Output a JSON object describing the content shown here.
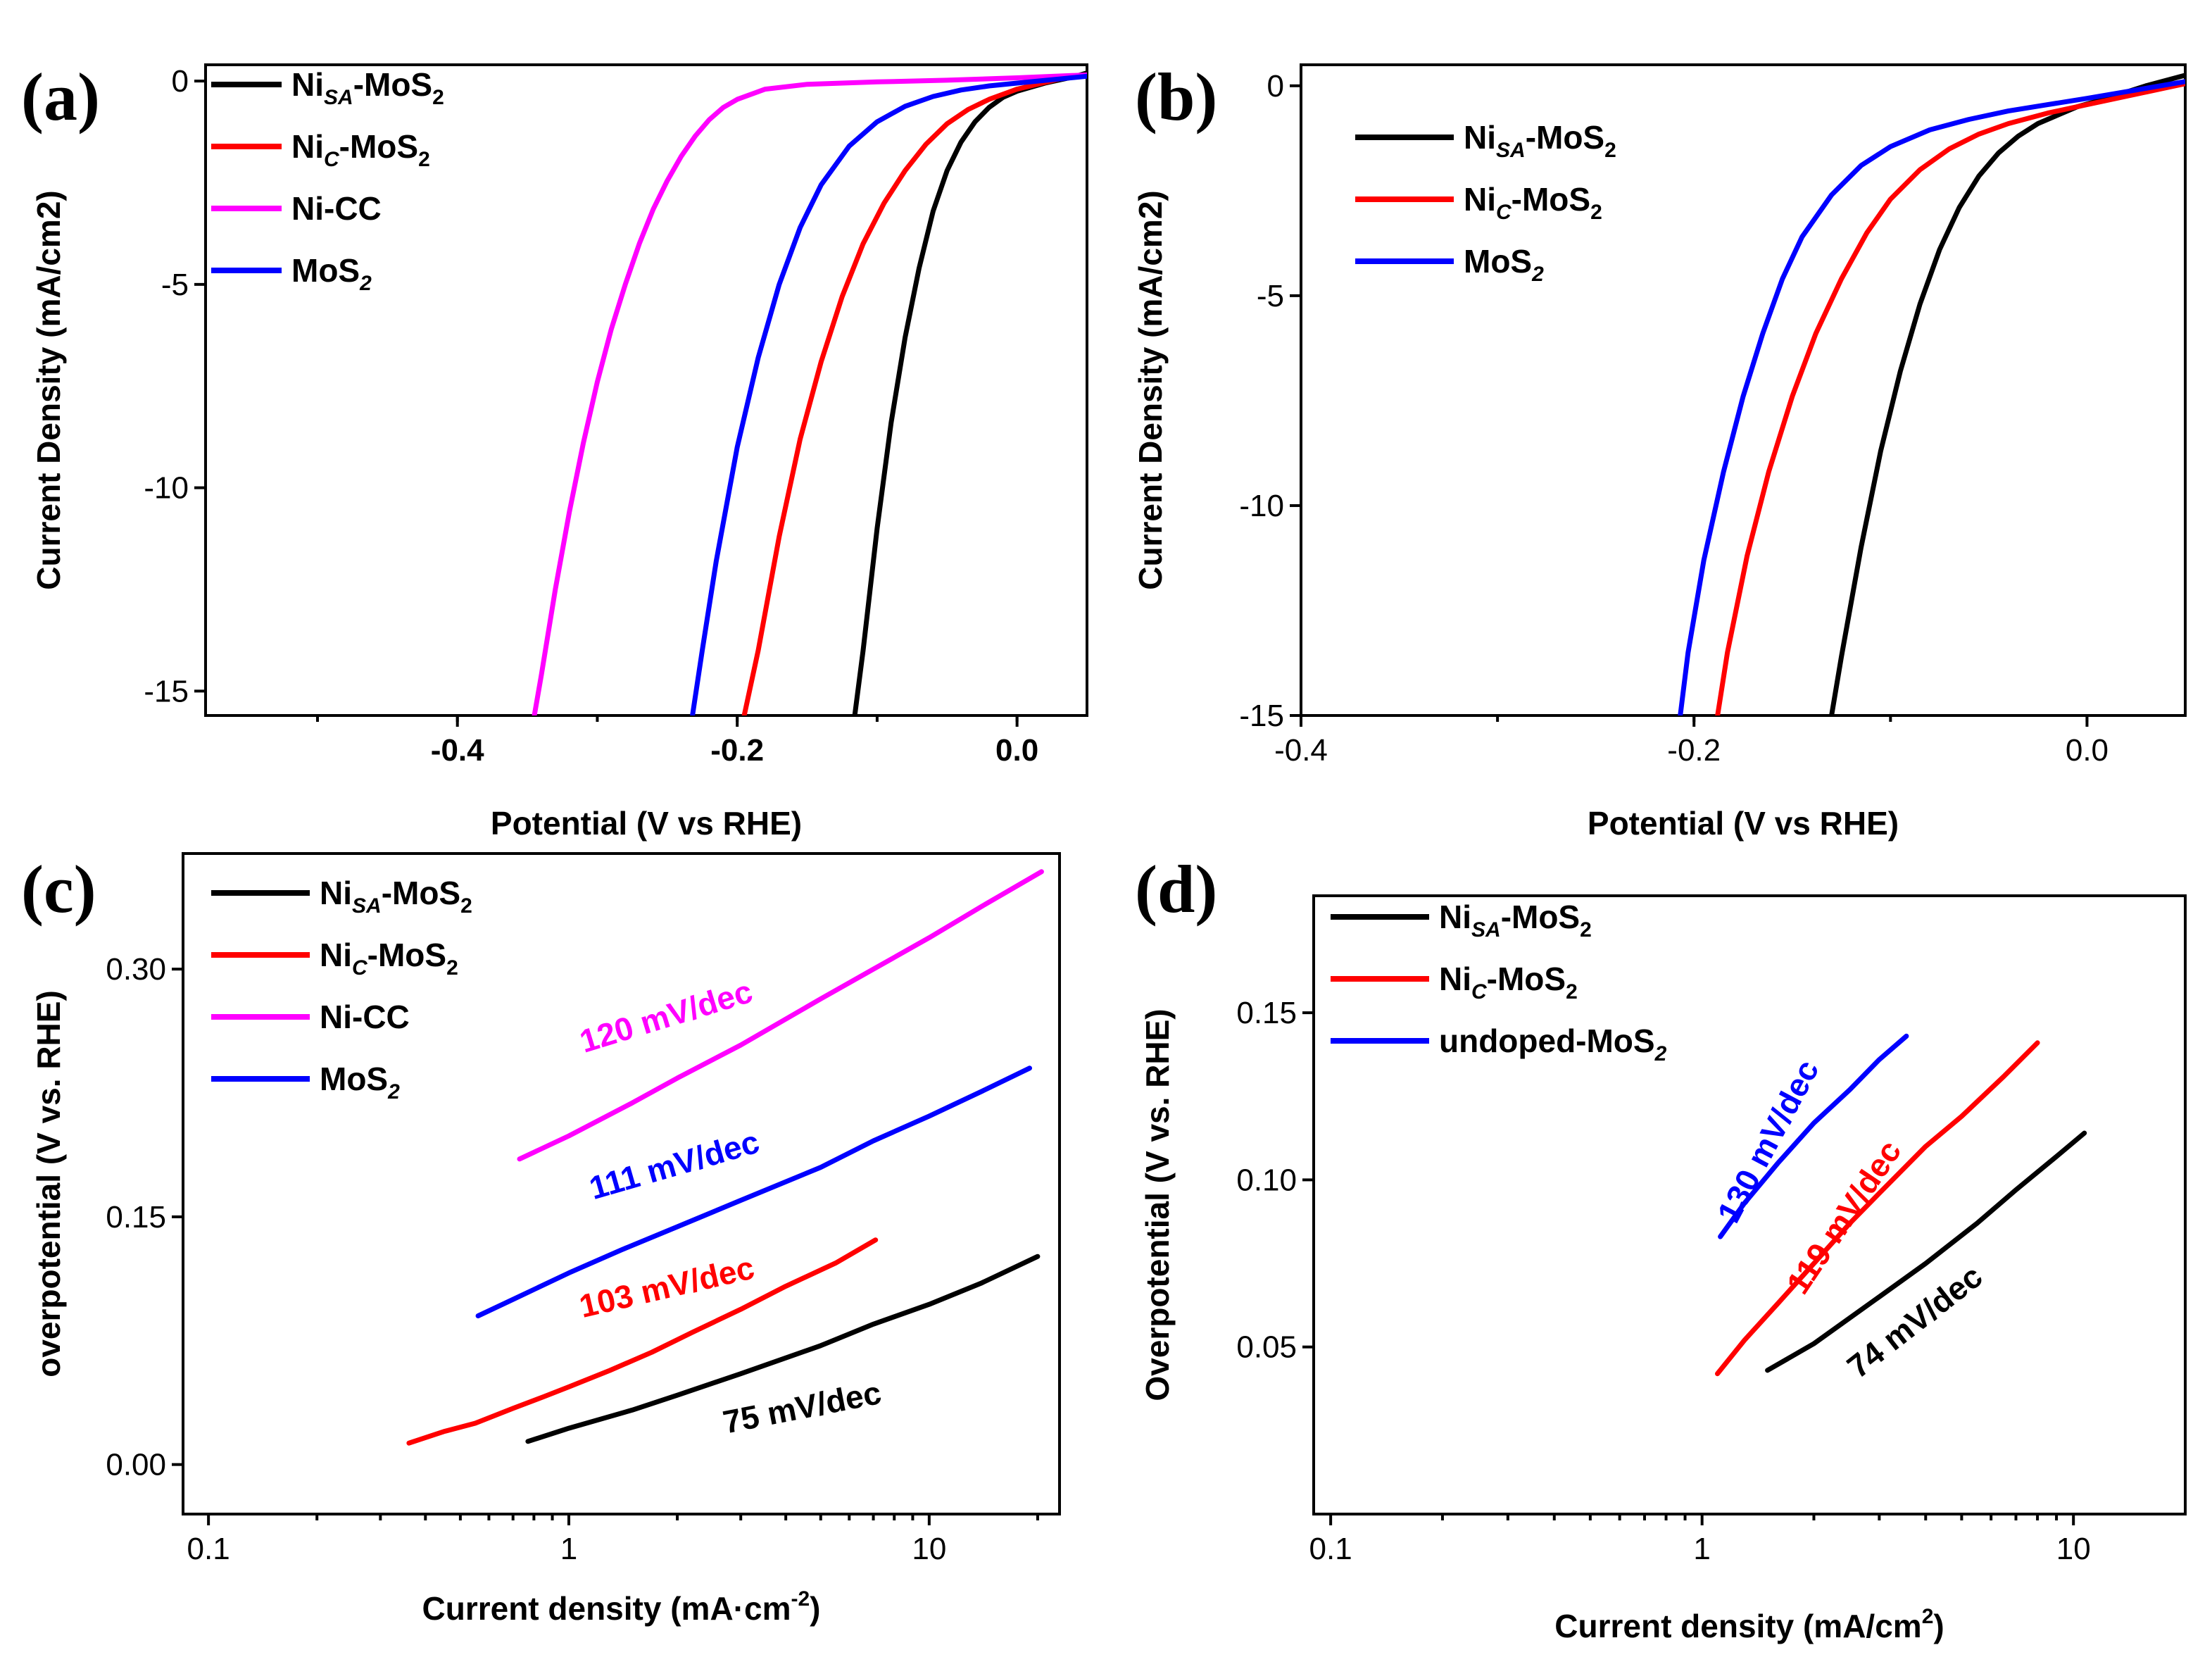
{
  "colors": {
    "black": "#000000",
    "red": "#ff0000",
    "magenta": "#ff00ff",
    "blue": "#0000ff"
  },
  "chart_data": [
    {
      "id": "a",
      "panel_label": "(a)",
      "type": "line",
      "xlabel": "Potential (V vs RHE)",
      "ylabel": "Current Density (mA/cm2)",
      "xlim": [
        -0.58,
        0.05
      ],
      "ylim": [
        -15.6,
        0.4
      ],
      "xticks": [
        -0.4,
        -0.2,
        0.0
      ],
      "xtick_labels": [
        "-0.4",
        "-0.2",
        "0.0"
      ],
      "yticks": [
        0,
        -5,
        -10,
        -15
      ],
      "ytick_labels": [
        "0",
        "-5",
        "-10",
        "-15"
      ],
      "legend_position": "top-left",
      "series": [
        {
          "name": "NiSA-MoS2",
          "legend": [
            "Ni",
            "SA",
            "-MoS",
            "2"
          ],
          "color": "#000000",
          "x": [
            -0.116,
            -0.11,
            -0.1,
            -0.09,
            -0.08,
            -0.07,
            -0.06,
            -0.05,
            -0.04,
            -0.03,
            -0.02,
            -0.01,
            0.0,
            0.02,
            0.04,
            0.05
          ],
          "y": [
            -15.6,
            -14.0,
            -11.0,
            -8.4,
            -6.3,
            -4.6,
            -3.2,
            -2.2,
            -1.5,
            -1.0,
            -0.65,
            -0.4,
            -0.25,
            -0.05,
            0.1,
            0.2
          ]
        },
        {
          "name": "NiC-MoS2",
          "legend": [
            "Ni",
            "C",
            "-MoS",
            "2"
          ],
          "color": "#ff0000",
          "x": [
            -0.195,
            -0.185,
            -0.17,
            -0.155,
            -0.14,
            -0.125,
            -0.11,
            -0.095,
            -0.08,
            -0.065,
            -0.05,
            -0.035,
            -0.02,
            0.0,
            0.03,
            0.05
          ],
          "y": [
            -15.6,
            -14.0,
            -11.2,
            -8.8,
            -6.9,
            -5.3,
            -4.0,
            -3.0,
            -2.2,
            -1.55,
            -1.05,
            -0.7,
            -0.45,
            -0.2,
            0.05,
            0.15
          ]
        },
        {
          "name": "Ni-CC",
          "legend": [
            "Ni-CC",
            "",
            "",
            ""
          ],
          "color": "#ff00ff",
          "x": [
            -0.345,
            -0.34,
            -0.33,
            -0.32,
            -0.31,
            -0.3,
            -0.29,
            -0.28,
            -0.27,
            -0.26,
            -0.25,
            -0.24,
            -0.23,
            -0.22,
            -0.21,
            -0.2,
            -0.18,
            -0.15,
            -0.1,
            -0.05,
            0.0,
            0.05
          ],
          "y": [
            -15.6,
            -14.6,
            -12.5,
            -10.6,
            -8.9,
            -7.4,
            -6.1,
            -5.0,
            -4.0,
            -3.15,
            -2.45,
            -1.85,
            -1.35,
            -0.95,
            -0.65,
            -0.45,
            -0.2,
            -0.08,
            -0.02,
            0.02,
            0.08,
            0.15
          ]
        },
        {
          "name": "MoS2",
          "legend": [
            "MoS",
            "2",
            "",
            ""
          ],
          "color": "#0000ff",
          "x": [
            -0.232,
            -0.225,
            -0.215,
            -0.2,
            -0.185,
            -0.17,
            -0.155,
            -0.14,
            -0.12,
            -0.1,
            -0.08,
            -0.06,
            -0.04,
            -0.02,
            0.0,
            0.03,
            0.05
          ],
          "y": [
            -15.6,
            -14.0,
            -11.8,
            -9.0,
            -6.8,
            -5.0,
            -3.6,
            -2.55,
            -1.6,
            -1.0,
            -0.62,
            -0.38,
            -0.22,
            -0.12,
            -0.05,
            0.05,
            0.12
          ]
        }
      ]
    },
    {
      "id": "b",
      "panel_label": "(b)",
      "type": "line",
      "xlabel": "Potential (V vs RHE)",
      "ylabel": "Current Density (mA/cm2)",
      "xlim": [
        -0.4,
        0.05
      ],
      "ylim": [
        -15.0,
        0.5
      ],
      "xticks": [
        -0.4,
        -0.2,
        0.0
      ],
      "xtick_labels": [
        "-0.4",
        "-0.2",
        "0.0"
      ],
      "yticks": [
        0,
        -5,
        -10,
        -15
      ],
      "ytick_labels": [
        "0",
        "-5",
        "-10",
        "-15"
      ],
      "legend_position": "top-left",
      "series": [
        {
          "name": "NiSA-MoS2",
          "legend": [
            "Ni",
            "SA",
            "-MoS",
            "2"
          ],
          "color": "#000000",
          "x": [
            -0.13,
            -0.125,
            -0.115,
            -0.105,
            -0.095,
            -0.085,
            -0.075,
            -0.065,
            -0.055,
            -0.045,
            -0.035,
            -0.025,
            -0.015,
            -0.005,
            0.01,
            0.03,
            0.05
          ],
          "y": [
            -15.0,
            -13.6,
            -11.0,
            -8.7,
            -6.8,
            -5.2,
            -3.9,
            -2.9,
            -2.15,
            -1.6,
            -1.2,
            -0.9,
            -0.7,
            -0.5,
            -0.3,
            0.0,
            0.25
          ]
        },
        {
          "name": "NiC-MoS2",
          "legend": [
            "Ni",
            "C",
            "-MoS",
            "2"
          ],
          "color": "#ff0000",
          "x": [
            -0.188,
            -0.183,
            -0.173,
            -0.162,
            -0.15,
            -0.138,
            -0.125,
            -0.112,
            -0.1,
            -0.085,
            -0.07,
            -0.055,
            -0.04,
            -0.02,
            0.0,
            0.025,
            0.05
          ],
          "y": [
            -15.0,
            -13.5,
            -11.2,
            -9.2,
            -7.4,
            -5.9,
            -4.6,
            -3.5,
            -2.7,
            -2.0,
            -1.5,
            -1.15,
            -0.9,
            -0.65,
            -0.45,
            -0.2,
            0.05
          ]
        },
        {
          "name": "MoS2",
          "legend": [
            "MoS",
            "2",
            "",
            ""
          ],
          "color": "#0000ff",
          "x": [
            -0.207,
            -0.203,
            -0.195,
            -0.185,
            -0.175,
            -0.165,
            -0.155,
            -0.145,
            -0.13,
            -0.115,
            -0.1,
            -0.08,
            -0.06,
            -0.04,
            -0.02,
            0.0,
            0.025,
            0.05
          ],
          "y": [
            -15.0,
            -13.5,
            -11.3,
            -9.2,
            -7.4,
            -5.9,
            -4.6,
            -3.6,
            -2.6,
            -1.9,
            -1.45,
            -1.05,
            -0.8,
            -0.6,
            -0.45,
            -0.3,
            -0.1,
            0.1
          ]
        }
      ]
    },
    {
      "id": "c",
      "panel_label": "(c)",
      "type": "line",
      "xscale": "log",
      "xlabel": "Current density (mA·cm",
      "xlabel_sup": "-2",
      "xlabel_end": ")",
      "ylabel": "overpotential (V vs. RHE)",
      "xlim": [
        0.085,
        23
      ],
      "ylim": [
        -0.03,
        0.37
      ],
      "xticks": [
        0.1,
        1,
        10
      ],
      "xtick_labels": [
        "0.1",
        "1",
        "10"
      ],
      "yticks": [
        0.0,
        0.15,
        0.3
      ],
      "ytick_labels": [
        "0.00",
        "0.15",
        "0.30"
      ],
      "legend_position": "top-left",
      "series": [
        {
          "name": "NiSA-MoS2",
          "legend": [
            "Ni",
            "SA",
            "-MoS",
            "2"
          ],
          "color": "#000000",
          "x": [
            0.77,
            1.0,
            1.5,
            2.0,
            3.0,
            5.0,
            7.0,
            10.0,
            14.0,
            20.0
          ],
          "y": [
            0.014,
            0.022,
            0.033,
            0.042,
            0.055,
            0.072,
            0.085,
            0.097,
            0.11,
            0.126
          ]
        },
        {
          "name": "NiC-MoS2",
          "legend": [
            "Ni",
            "C",
            "-MoS",
            "2"
          ],
          "color": "#ff0000",
          "x": [
            0.36,
            0.45,
            0.55,
            0.7,
            0.85,
            1.0,
            1.3,
            1.7,
            2.2,
            3.0,
            4.0,
            5.5,
            7.1
          ],
          "y": [
            0.013,
            0.02,
            0.025,
            0.034,
            0.041,
            0.047,
            0.057,
            0.068,
            0.08,
            0.094,
            0.108,
            0.122,
            0.136
          ]
        },
        {
          "name": "Ni-CC",
          "legend": [
            "Ni-CC",
            "",
            "",
            ""
          ],
          "color": "#ff00ff",
          "x": [
            0.73,
            1.0,
            1.5,
            2.0,
            3.0,
            5.0,
            7.0,
            10.0,
            14.0,
            20.5
          ],
          "y": [
            0.185,
            0.199,
            0.219,
            0.234,
            0.254,
            0.282,
            0.3,
            0.319,
            0.338,
            0.359
          ]
        },
        {
          "name": "MoS2",
          "legend": [
            "MoS",
            "2",
            "",
            ""
          ],
          "color": "#0000ff",
          "x": [
            0.56,
            0.7,
            1.0,
            1.4,
            2.0,
            3.0,
            5.0,
            7.0,
            10.0,
            14.0,
            19.0
          ],
          "y": [
            0.09,
            0.1,
            0.116,
            0.13,
            0.144,
            0.16,
            0.18,
            0.196,
            0.211,
            0.226,
            0.24
          ]
        }
      ],
      "annotations": [
        {
          "text": "120 mV/dec",
          "color": "#ff00ff",
          "x": 1.9,
          "y": 0.265,
          "angle": -17
        },
        {
          "text": "111 mV/dec",
          "color": "#0000ff",
          "x": 2.0,
          "y": 0.175,
          "angle": -16
        },
        {
          "text": "103 mV/dec",
          "color": "#ff0000",
          "x": 1.9,
          "y": 0.101,
          "angle": -13
        },
        {
          "text": "75 mV/dec",
          "color": "#000000",
          "x": 4.5,
          "y": 0.028,
          "angle": -11
        }
      ]
    },
    {
      "id": "d",
      "panel_label": "(d)",
      "type": "line",
      "xscale": "log",
      "xlabel": "Current density (mA/cm",
      "xlabel_sup": "2",
      "xlabel_end": ")",
      "ylabel": "Overpotential (V vs. RHE)",
      "xlim": [
        0.09,
        20
      ],
      "ylim": [
        0.0,
        0.185
      ],
      "xticks": [
        0.1,
        1,
        10
      ],
      "xtick_labels": [
        "0.1",
        "1",
        "10"
      ],
      "yticks": [
        0.05,
        0.1,
        0.15
      ],
      "ytick_labels": [
        "0.05",
        "0.10",
        "0.15"
      ],
      "legend_position": "top-left",
      "series": [
        {
          "name": "NiSA-MoS2",
          "legend": [
            "Ni",
            "SA",
            "-MoS",
            "2"
          ],
          "color": "#000000",
          "x": [
            1.5,
            2.0,
            3.0,
            4.0,
            5.5,
            7.0,
            9.0,
            10.7
          ],
          "y": [
            0.043,
            0.051,
            0.065,
            0.075,
            0.087,
            0.097,
            0.107,
            0.114
          ]
        },
        {
          "name": "NiC-MoS2",
          "legend": [
            " Ni",
            "C",
            "-MoS",
            "2"
          ],
          "color": "#ff0000",
          "x": [
            1.1,
            1.3,
            1.6,
            2.0,
            2.5,
            3.0,
            4.0,
            5.0,
            6.5,
            8.0
          ],
          "y": [
            0.042,
            0.052,
            0.063,
            0.075,
            0.087,
            0.096,
            0.11,
            0.119,
            0.131,
            0.141
          ]
        },
        {
          "name": "undoped-MoS2",
          "legend": [
            "undoped-MoS",
            "2",
            "",
            ""
          ],
          "color": "#0000ff",
          "x": [
            1.12,
            1.3,
            1.6,
            2.0,
            2.5,
            3.0,
            3.55
          ],
          "y": [
            0.083,
            0.093,
            0.105,
            0.117,
            0.127,
            0.136,
            0.143
          ]
        }
      ],
      "annotations": [
        {
          "text": "130 mV/dec",
          "color": "#0000ff",
          "x": 1.6,
          "y": 0.11,
          "angle": -62
        },
        {
          "text": "119 mV/dec",
          "color": "#ff0000",
          "x": 2.55,
          "y": 0.087,
          "angle": -56
        },
        {
          "text": "74 mV/dec",
          "color": "#000000",
          "x": 3.9,
          "y": 0.055,
          "angle": -38
        }
      ]
    }
  ]
}
